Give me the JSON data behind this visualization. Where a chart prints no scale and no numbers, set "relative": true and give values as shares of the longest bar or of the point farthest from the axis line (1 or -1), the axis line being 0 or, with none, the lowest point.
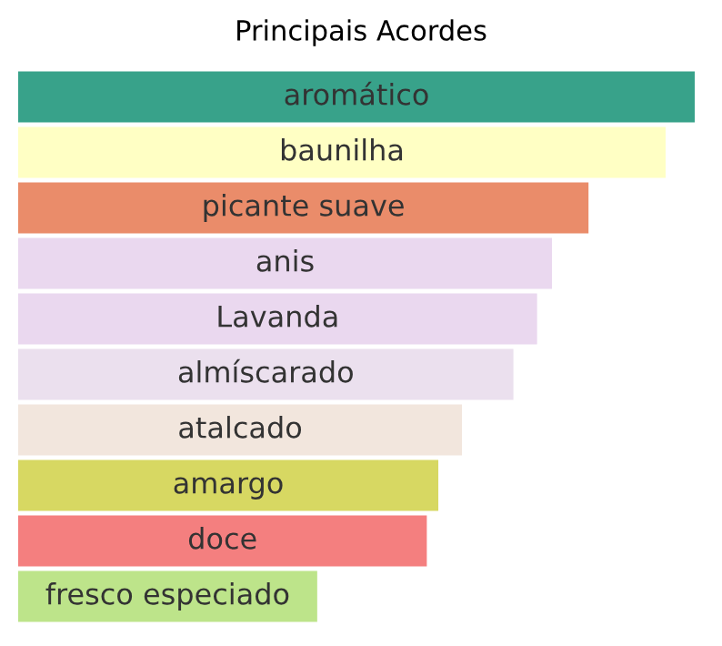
{
  "chart_data": {
    "type": "bar",
    "orientation": "horizontal",
    "relative": true,
    "title": "Principais Acordes",
    "categories": [
      "aromático",
      "baunilha",
      "picante suave",
      "anis",
      "Lavanda",
      "almíscarado",
      "atalcado",
      "amargo",
      "doce",
      "fresco especiado"
    ],
    "values": [
      1,
      0.957,
      0.843,
      0.789,
      0.767,
      0.732,
      0.656,
      0.621,
      0.604,
      0.442
    ],
    "colors": [
      "#38a28a",
      "#ffffc4",
      "#ea8c6a",
      "#ead8ef",
      "#ead8ef",
      "#ebe0ee",
      "#f2e6dd",
      "#d7d862",
      "#f47f7f",
      "#bde48a"
    ]
  }
}
